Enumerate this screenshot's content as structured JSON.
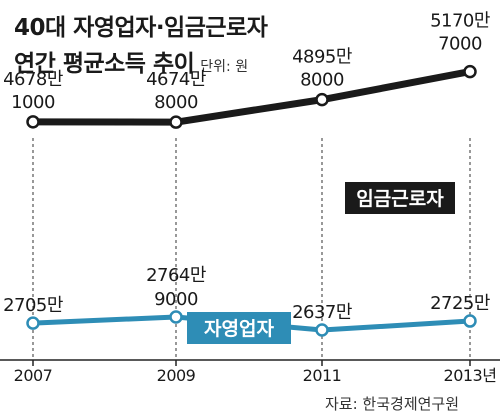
{
  "header": {
    "title_line1": "40대 자영업자·임금근로자",
    "title_line2": "연간 평균소득 추이",
    "unit": "단위: 원"
  },
  "source": "자료: 한국경제연구원",
  "chart_data": {
    "type": "line",
    "x": [
      "2007",
      "2009",
      "2011",
      "2013년"
    ],
    "ylim": [
      20000000,
      55000000
    ],
    "series": [
      {
        "name": "임금근로자",
        "color": "#1a1a1a",
        "values": [
          46781000,
          46748000,
          48958000,
          51707000
        ],
        "labels": [
          [
            "4678만",
            "1000"
          ],
          [
            "4674만",
            "8000"
          ],
          [
            "4895만",
            "8000"
          ],
          [
            "5170만",
            "7000"
          ]
        ]
      },
      {
        "name": "자영업자",
        "color": "#2e8db6",
        "values": [
          27050000,
          27649000,
          26370000,
          27250000
        ],
        "labels": [
          [
            "2705만"
          ],
          [
            "2764만",
            "9000"
          ],
          [
            "2637만"
          ],
          [
            "2725만"
          ]
        ]
      }
    ]
  }
}
